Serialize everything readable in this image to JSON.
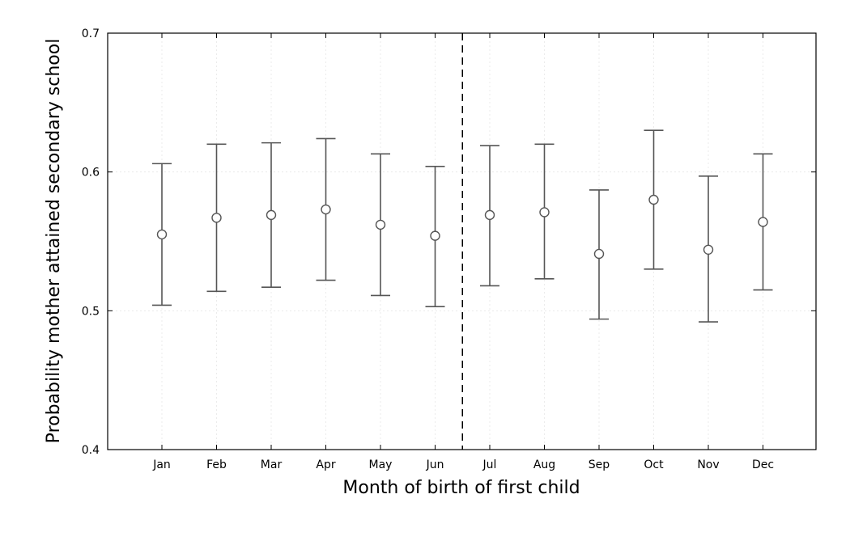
{
  "chart_data": {
    "type": "scatter",
    "title": "",
    "xlabel": "Month of birth of first child",
    "ylabel": "Probability mother attained secondary school",
    "categories": [
      "Jan",
      "Feb",
      "Mar",
      "Apr",
      "May",
      "Jun",
      "Jul",
      "Aug",
      "Sep",
      "Oct",
      "Nov",
      "Dec"
    ],
    "values": [
      0.555,
      0.567,
      0.569,
      0.573,
      0.562,
      0.554,
      0.569,
      0.571,
      0.541,
      0.58,
      0.544,
      0.564
    ],
    "lower": [
      0.504,
      0.514,
      0.517,
      0.522,
      0.511,
      0.503,
      0.518,
      0.523,
      0.494,
      0.53,
      0.492,
      0.515
    ],
    "upper": [
      0.606,
      0.62,
      0.621,
      0.624,
      0.613,
      0.604,
      0.619,
      0.62,
      0.587,
      0.63,
      0.597,
      0.613
    ],
    "ylim": [
      0.4,
      0.7
    ],
    "yticks": [
      "0.4",
      "0.5",
      "0.6",
      "0.7"
    ],
    "vline_between": [
      "Jun",
      "Jul"
    ],
    "grid": true,
    "marker_color": "#555555"
  }
}
